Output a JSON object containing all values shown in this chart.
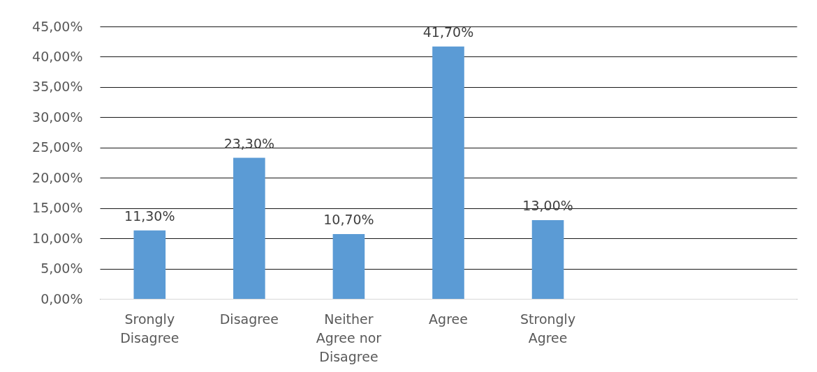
{
  "chart_data": {
    "type": "bar",
    "categories": [
      "Srongly Disagree",
      "Disagree",
      "Neither Agree nor Disagree",
      "Agree",
      "Strongly Agree",
      null,
      null
    ],
    "values": [
      11.3,
      23.3,
      10.7,
      41.7,
      13.0,
      null,
      null
    ],
    "value_labels": [
      "11,30%",
      "23,30%",
      "10,70%",
      "41,70%",
      "13,00%",
      null,
      null
    ],
    "color": "#5b9bd5",
    "ylim": [
      0,
      45
    ],
    "yticks": [
      {
        "value": 0,
        "label": "0,00%"
      },
      {
        "value": 5,
        "label": "5,00%"
      },
      {
        "value": 10,
        "label": "10,00%"
      },
      {
        "value": 15,
        "label": "15,00%"
      },
      {
        "value": 20,
        "label": "20,00%"
      },
      {
        "value": 25,
        "label": "25,00%"
      },
      {
        "value": 30,
        "label": "30,00%"
      },
      {
        "value": 35,
        "label": "35,00%"
      },
      {
        "value": 40,
        "label": "40,00%"
      },
      {
        "value": 45,
        "label": "45,00%"
      }
    ],
    "grid": "y"
  }
}
